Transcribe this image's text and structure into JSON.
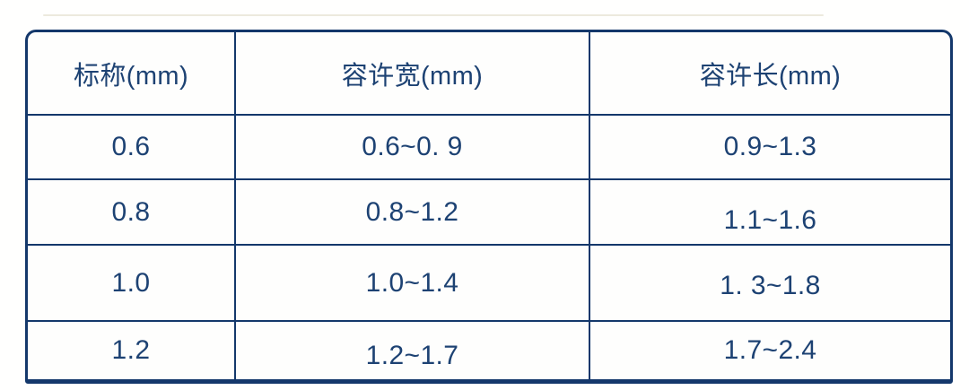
{
  "style": {
    "border_color": "#14386b",
    "text_color": "#1d4273",
    "background": "#ffffff"
  },
  "chart_data": {
    "type": "table",
    "title": "",
    "columns": [
      "标称(mm)",
      "容许宽(mm)",
      "容许长(mm)"
    ],
    "rows": [
      [
        "0.6",
        "0.6~0. 9",
        "0.9~1.3"
      ],
      [
        "0.8",
        "0.8~1.2",
        "1.1~1.6"
      ],
      [
        "1.0",
        "1.0~1.4",
        "1. 3~1.8"
      ],
      [
        "1.2",
        "1.2~1.7",
        "1.7~2.4"
      ]
    ],
    "layout": {
      "grid": "on",
      "header_row": true,
      "rounded_top_corners": true
    }
  }
}
